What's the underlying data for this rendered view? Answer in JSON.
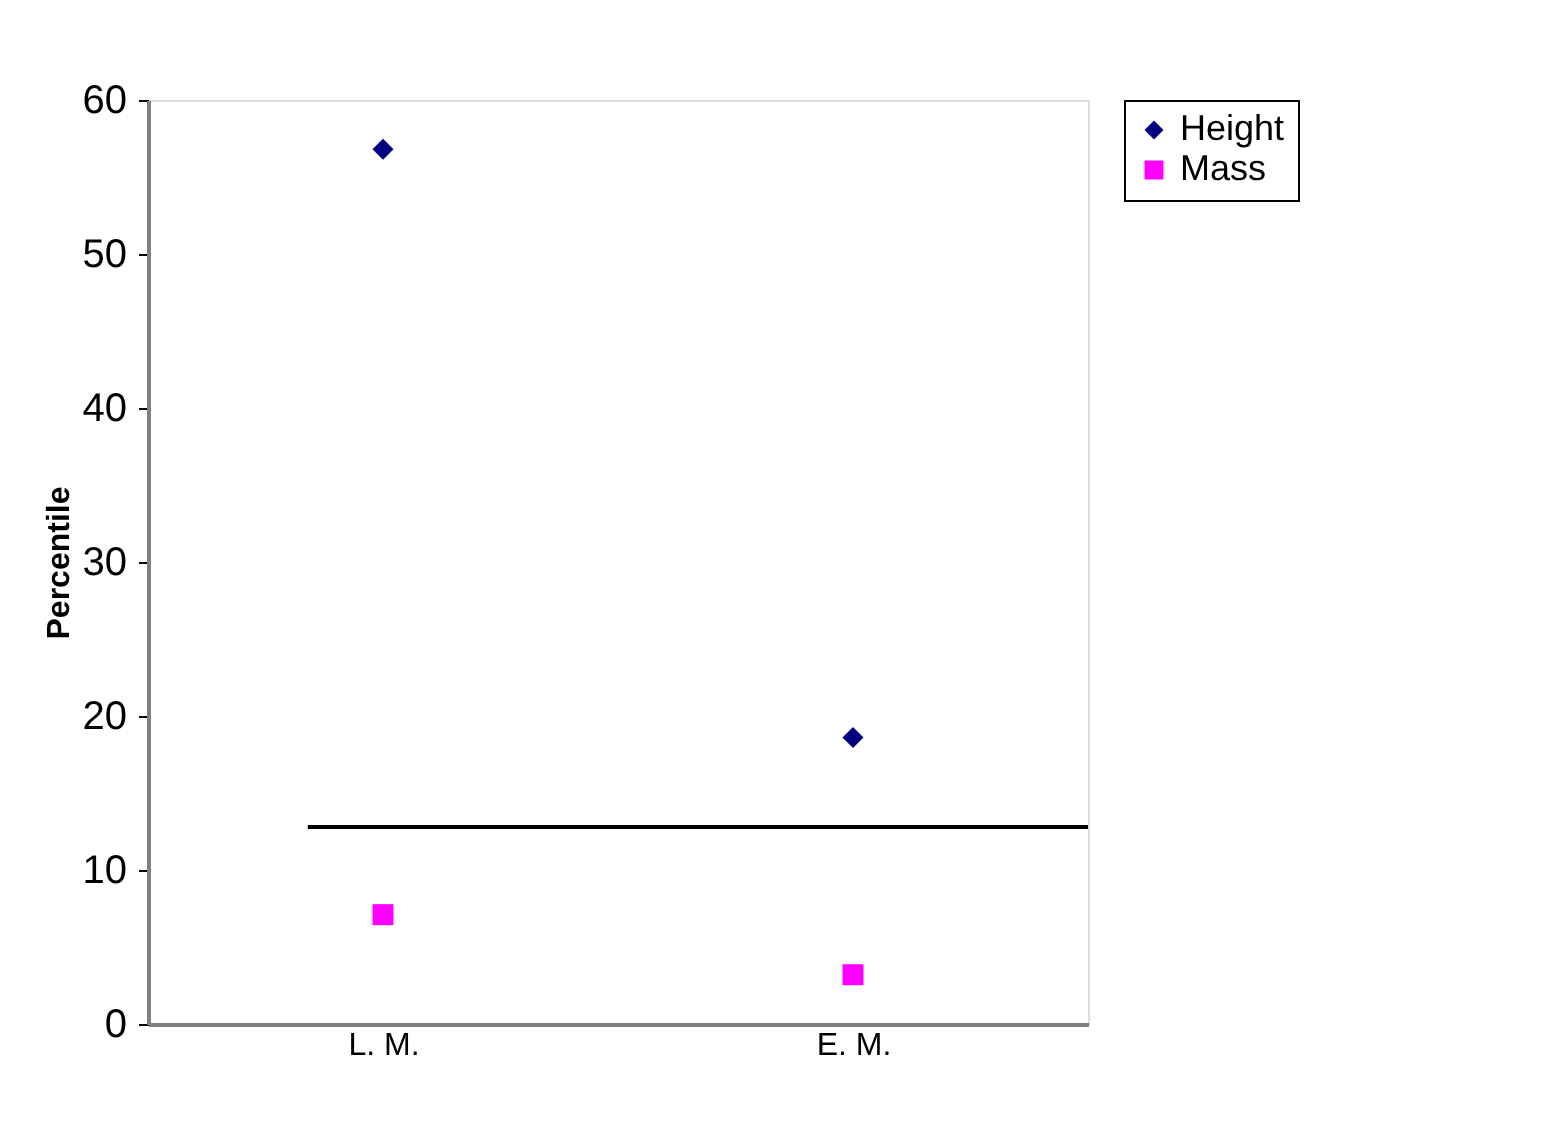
{
  "chart_data": {
    "type": "scatter",
    "ylabel": "Percentile",
    "categories": [
      "L. M.",
      "E. M."
    ],
    "series": [
      {
        "name": "Height",
        "color": "#000080",
        "marker": "diamond",
        "values": [
          56.8,
          18.6
        ]
      },
      {
        "name": "Mass",
        "color": "#ff00ff",
        "marker": "square",
        "values": [
          7.1,
          3.2
        ]
      }
    ],
    "ylim": [
      0,
      60
    ],
    "yticks": [
      0,
      10,
      20,
      30,
      40,
      50,
      60
    ],
    "grid": false,
    "legend": "right",
    "ref_lines": [
      {
        "axis": "y",
        "value": 12.8,
        "color": "#000000"
      }
    ]
  }
}
